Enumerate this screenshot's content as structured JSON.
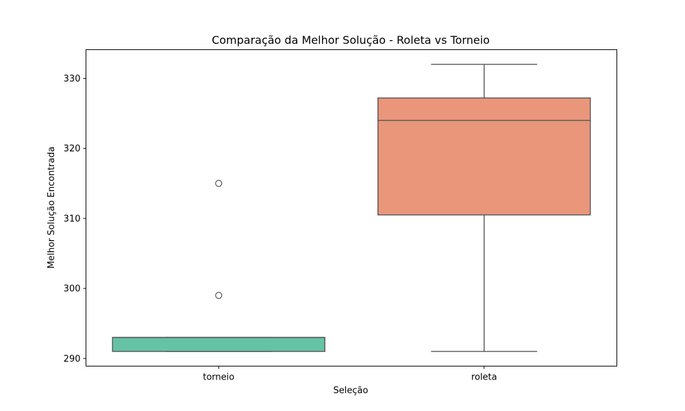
{
  "chart_data": {
    "type": "boxplot",
    "title": "Comparação da Melhor Solução - Roleta vs Torneio",
    "xlabel": "Seleção",
    "ylabel": "Melhor Solução Encontrada",
    "categories": [
      "torneio",
      "roleta"
    ],
    "ylim": [
      288.9,
      334.1
    ],
    "yticks": [
      290,
      300,
      310,
      320,
      330
    ],
    "grid": false,
    "legend": "none",
    "boxes": [
      {
        "category": "torneio",
        "whisker_low": 291,
        "q1": 291,
        "median": 293,
        "q3": 293,
        "whisker_high": 293,
        "outliers": [
          299,
          315
        ],
        "color": "#66c2a5"
      },
      {
        "category": "roleta",
        "whisker_low": 291,
        "q1": 310.5,
        "median": 324,
        "q3": 327.2,
        "whisker_high": 332,
        "outliers": [],
        "color": "#e9967a"
      }
    ]
  },
  "colors": {
    "axis": "#000000",
    "box_edge": "#555555"
  }
}
